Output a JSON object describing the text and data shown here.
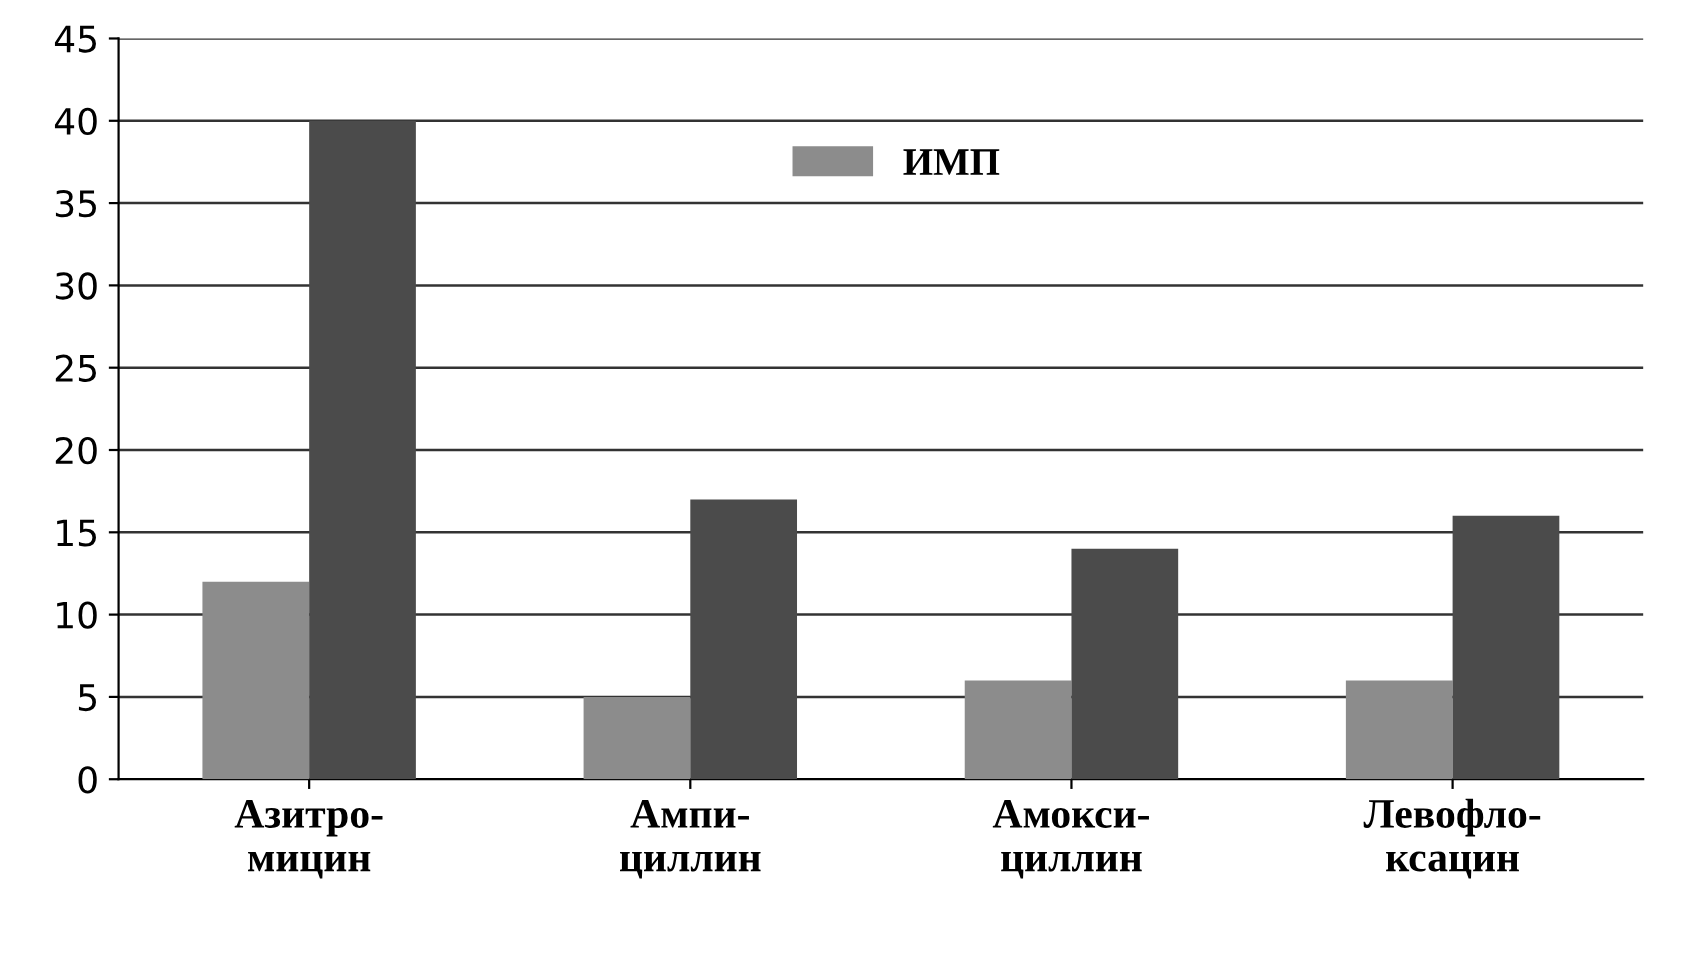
{
  "chart_data": {
    "type": "bar",
    "categories": [
      "Азитро-\nмицин",
      "Ампи-\nциллин",
      "Амокси-\nциллин",
      "Левофло-\nксацин"
    ],
    "series": [
      {
        "name": "ИМП",
        "color": "#8c8c8c",
        "values": [
          12,
          5,
          6,
          6
        ]
      },
      {
        "color": "#4b4b4b",
        "values": [
          40,
          17,
          14,
          16
        ]
      }
    ],
    "ylim": [
      0,
      45
    ],
    "yticks": [
      0,
      5,
      10,
      15,
      20,
      25,
      30,
      35,
      40,
      45
    ],
    "grid": "y",
    "legend": "top"
  }
}
